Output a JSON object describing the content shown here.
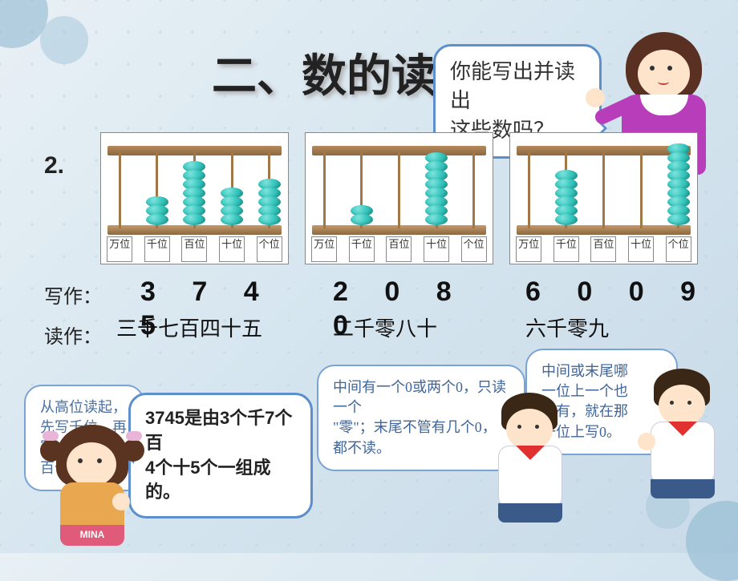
{
  "title": "二、数的读写法",
  "question_number": "2.",
  "teacher_bubble": "你能写出并读出\n这些数吗？",
  "place_labels": [
    "万位",
    "千位",
    "百位",
    "十位",
    "个位"
  ],
  "abacuses": [
    {
      "beads": [
        0,
        3,
        7,
        4,
        5
      ]
    },
    {
      "beads": [
        0,
        2,
        0,
        8,
        0
      ]
    },
    {
      "beads": [
        0,
        6,
        0,
        0,
        9
      ]
    }
  ],
  "write_label": "写作：",
  "read_label": "读作：",
  "answers": [
    {
      "write": "3 7 4",
      "overflow": "5",
      "read": "三千七百四十五"
    },
    {
      "write": "2 0 8",
      "overflow": "0",
      "read": "二千零八十"
    },
    {
      "write": "6 0 0 9",
      "overflow": "",
      "read": "六千零九"
    }
  ],
  "girl_bubble": "3745是由3个千7个百\n4个十5个一组成的。",
  "left_blue_bubble": "从高位读起，\n先写千位，再写\n百位……",
  "mid_blue_bubble": "中间有一个0或两个0，只读一个\n\"零\"；末尾不管有几个0，都不读。",
  "right_blue_bubble": "中间或末尾哪\n一位上一个也\n没有，就在那\n一位上写0。",
  "girl_shirt": "MINA",
  "colors": {
    "bead": "#3cc9c0",
    "wood": "#8c6840",
    "bubble_border": "#6b9bd1",
    "teacher_dress": "#b83dbb",
    "scarf": "#e03030"
  }
}
